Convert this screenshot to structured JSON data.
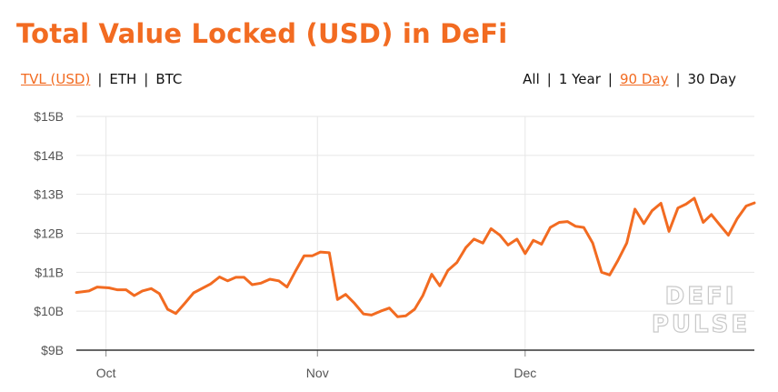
{
  "title": "Total Value Locked (USD) in DeFi",
  "unit_options": [
    {
      "label": "TVL (USD)",
      "active": true
    },
    {
      "label": "ETH",
      "active": false
    },
    {
      "label": "BTC",
      "active": false
    }
  ],
  "range_options": [
    {
      "label": "All",
      "active": false
    },
    {
      "label": "1 Year",
      "active": false
    },
    {
      "label": "90 Day",
      "active": true
    },
    {
      "label": "30 Day",
      "active": false
    }
  ],
  "separator": "|",
  "watermark": [
    "DEFI",
    "PULSE"
  ],
  "colors": {
    "accent": "#f26b21",
    "grid": "#e6e6e6",
    "axis": "#333333"
  },
  "chart_data": {
    "type": "line",
    "title": "Total Value Locked (USD) in DeFi",
    "xlabel": "",
    "ylabel": "",
    "grid": true,
    "legend": "none",
    "ylim": [
      9,
      15
    ],
    "xlim": [
      0,
      91.4
    ],
    "y_unit": "B USD",
    "y_ticks": [
      {
        "value": 9,
        "label": "$9B"
      },
      {
        "value": 10,
        "label": "$10B"
      },
      {
        "value": 11,
        "label": "$11B"
      },
      {
        "value": 12,
        "label": "$12B"
      },
      {
        "value": 13,
        "label": "$13B"
      },
      {
        "value": 14,
        "label": "$14B"
      },
      {
        "value": 15,
        "label": "$15B"
      }
    ],
    "x_ticks": [
      {
        "value": 4,
        "label": "Oct"
      },
      {
        "value": 32.5,
        "label": "Nov"
      },
      {
        "value": 60.5,
        "label": "Dec"
      }
    ],
    "series": [
      {
        "values": [
          [
            0,
            10.48
          ],
          [
            1.7,
            10.52
          ],
          [
            2.8,
            10.62
          ],
          [
            4.4,
            10.6
          ],
          [
            5.5,
            10.55
          ],
          [
            6.7,
            10.55
          ],
          [
            7.8,
            10.4
          ],
          [
            8.9,
            10.52
          ],
          [
            10.1,
            10.58
          ],
          [
            11.2,
            10.45
          ],
          [
            12.3,
            10.05
          ],
          [
            13.4,
            9.94
          ],
          [
            14.6,
            10.2
          ],
          [
            15.8,
            10.47
          ],
          [
            18.1,
            10.7
          ],
          [
            19.3,
            10.88
          ],
          [
            20.4,
            10.78
          ],
          [
            21.5,
            10.87
          ],
          [
            22.6,
            10.87
          ],
          [
            23.7,
            10.68
          ],
          [
            24.9,
            10.72
          ],
          [
            26.1,
            10.82
          ],
          [
            27.3,
            10.78
          ],
          [
            28.4,
            10.62
          ],
          [
            29.6,
            11.05
          ],
          [
            30.7,
            11.42
          ],
          [
            31.8,
            11.42
          ],
          [
            32.9,
            11.52
          ],
          [
            34.1,
            11.5
          ],
          [
            35.2,
            10.3
          ],
          [
            36.3,
            10.43
          ],
          [
            37.5,
            10.2
          ],
          [
            38.7,
            9.93
          ],
          [
            39.8,
            9.9
          ],
          [
            41.0,
            10.0
          ],
          [
            42.2,
            10.08
          ],
          [
            43.3,
            9.86
          ],
          [
            44.4,
            9.88
          ],
          [
            45.6,
            10.05
          ],
          [
            46.7,
            10.4
          ],
          [
            47.9,
            10.95
          ],
          [
            49.0,
            10.65
          ],
          [
            50.1,
            11.05
          ],
          [
            51.3,
            11.25
          ],
          [
            52.5,
            11.63
          ],
          [
            53.6,
            11.85
          ],
          [
            54.8,
            11.75
          ],
          [
            55.9,
            12.12
          ],
          [
            57.1,
            11.95
          ],
          [
            58.2,
            11.7
          ],
          [
            59.4,
            11.85
          ],
          [
            60.5,
            11.48
          ],
          [
            61.6,
            11.82
          ],
          [
            62.7,
            11.72
          ],
          [
            63.9,
            12.15
          ],
          [
            65.1,
            12.28
          ],
          [
            66.2,
            12.3
          ],
          [
            67.3,
            12.18
          ],
          [
            68.4,
            12.15
          ],
          [
            69.6,
            11.75
          ],
          [
            70.8,
            11.0
          ],
          [
            71.9,
            10.93
          ],
          [
            73.0,
            11.3
          ],
          [
            74.2,
            11.75
          ],
          [
            75.3,
            12.62
          ],
          [
            76.5,
            12.25
          ],
          [
            77.6,
            12.58
          ],
          [
            78.8,
            12.77
          ],
          [
            79.9,
            12.05
          ],
          [
            81.1,
            12.65
          ],
          [
            82.2,
            12.75
          ],
          [
            83.3,
            12.9
          ],
          [
            84.5,
            12.28
          ],
          [
            85.6,
            12.48
          ],
          [
            86.8,
            12.2
          ],
          [
            87.9,
            11.95
          ],
          [
            89.1,
            12.38
          ],
          [
            90.3,
            12.7
          ],
          [
            91.4,
            12.78
          ]
        ]
      }
    ]
  }
}
